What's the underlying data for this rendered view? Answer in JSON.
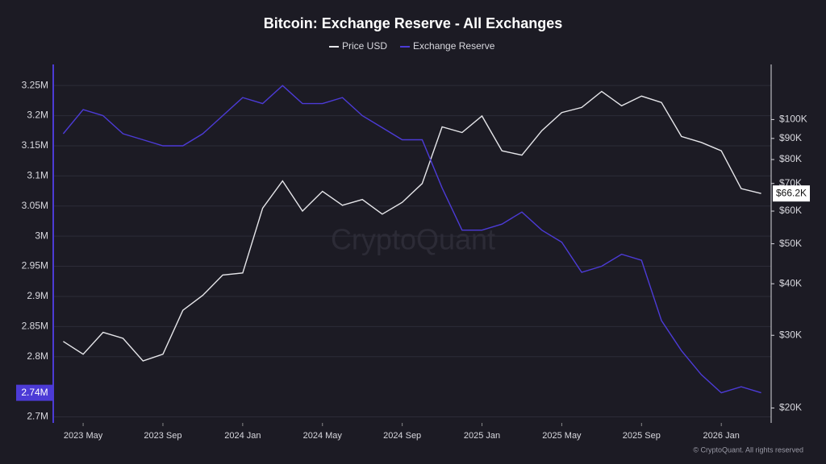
{
  "chart_data": {
    "type": "line",
    "title": "Bitcoin: Exchange Reserve - All Exchanges",
    "watermark": "CryptoQuant",
    "footer": "© CryptoQuant. All rights reserved",
    "x": [
      "2023 Apr",
      "2023 May",
      "2023 Jun",
      "2023 Jul",
      "2023 Aug",
      "2023 Sep",
      "2023 Oct",
      "2023 Nov",
      "2023 Dec",
      "2024 Jan",
      "2024 Feb",
      "2024 Mar",
      "2024 Apr",
      "2024 May",
      "2024 Jun",
      "2024 Jul",
      "2024 Aug",
      "2024 Sep",
      "2024 Oct",
      "2024 Nov",
      "2024 Dec",
      "2025 Jan",
      "2025 Feb",
      "2025 Mar",
      "2025 Apr",
      "2025 May",
      "2025 Jun",
      "2025 Jul",
      "2025 Aug",
      "2025 Sep",
      "2025 Oct",
      "2025 Nov",
      "2025 Dec",
      "2026 Jan",
      "2026 Feb",
      "2026 Mar"
    ],
    "xticks": [
      "2023 May",
      "2023 Sep",
      "2024 Jan",
      "2024 May",
      "2024 Sep",
      "2025 Jan",
      "2025 May",
      "2025 Sep",
      "2026 Jan"
    ],
    "series": [
      {
        "name": "Price USD",
        "color": "#e6e6ea",
        "axis": "y2",
        "values": [
          29000,
          27000,
          30500,
          29500,
          26000,
          27000,
          34500,
          37500,
          42000,
          42500,
          61000,
          71000,
          60000,
          67000,
          62000,
          64000,
          59000,
          63000,
          70000,
          96000,
          93000,
          102000,
          84000,
          82000,
          94000,
          104000,
          107000,
          117000,
          108000,
          114000,
          110000,
          91000,
          88000,
          84000,
          68000,
          66200
        ]
      },
      {
        "name": "Exchange Reserve",
        "color": "#4c3bd6",
        "axis": "y",
        "values": [
          3170000,
          3210000,
          3200000,
          3170000,
          3160000,
          3150000,
          3150000,
          3170000,
          3200000,
          3230000,
          3220000,
          3250000,
          3220000,
          3220000,
          3230000,
          3200000,
          3180000,
          3160000,
          3160000,
          3080000,
          3010000,
          3010000,
          3020000,
          3040000,
          3010000,
          2990000,
          2940000,
          2950000,
          2970000,
          2960000,
          2860000,
          2810000,
          2770000,
          2740000,
          2750000,
          2740000
        ]
      }
    ],
    "ylim": [
      2690000,
      3285000
    ],
    "yticks": [
      {
        "value": 2700000,
        "label": "2.7M"
      },
      {
        "value": 2800000,
        "label": "2.8M"
      },
      {
        "value": 2850000,
        "label": "2.85M"
      },
      {
        "value": 2900000,
        "label": "2.9M"
      },
      {
        "value": 2950000,
        "label": "2.95M"
      },
      {
        "value": 3000000,
        "label": "3M"
      },
      {
        "value": 3050000,
        "label": "3.05M"
      },
      {
        "value": 3100000,
        "label": "3.1M"
      },
      {
        "value": 3150000,
        "label": "3.15M"
      },
      {
        "value": 3200000,
        "label": "3.2M"
      },
      {
        "value": 3250000,
        "label": "3.25M"
      }
    ],
    "y2lim": [
      18400,
      136000
    ],
    "y2_scale": "log",
    "y2ticks": [
      {
        "value": 20000,
        "label": "$20K"
      },
      {
        "value": 30000,
        "label": "$30K"
      },
      {
        "value": 40000,
        "label": "$40K"
      },
      {
        "value": 50000,
        "label": "$50K"
      },
      {
        "value": 60000,
        "label": "$60K"
      },
      {
        "value": 70000,
        "label": "$70K"
      },
      {
        "value": 80000,
        "label": "$80K"
      },
      {
        "value": 90000,
        "label": "$90K"
      },
      {
        "value": 100000,
        "label": "$100K"
      }
    ],
    "annotations": [
      {
        "text": "2.74M",
        "value": 2740000,
        "axis": "y"
      },
      {
        "text": "$66.2K",
        "value": 66200,
        "axis": "y2"
      }
    ],
    "grid": true
  }
}
